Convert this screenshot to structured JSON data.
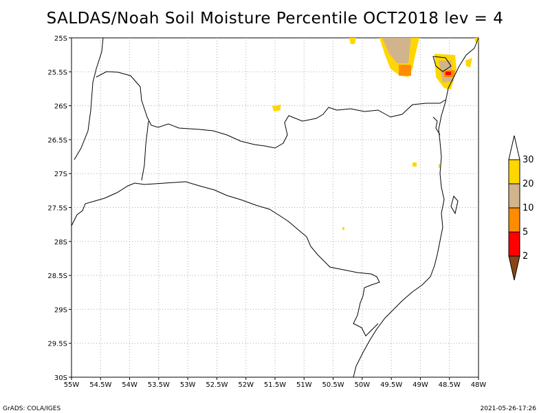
{
  "title": "SALDAS/Noah Soil Moisture Percentile OCT2018 lev = 4",
  "footer": {
    "left": "GrADS: COLA/IGES",
    "right": "2021-05-26-17:26"
  },
  "map": {
    "x_ticks": [
      "55W",
      "54.5W",
      "54W",
      "53.5W",
      "53W",
      "52.5W",
      "52W",
      "51.5W",
      "51W",
      "50.5W",
      "50W",
      "49.5W",
      "49W",
      "48.5W",
      "48W"
    ],
    "y_ticks": [
      "25S",
      "25.5S",
      "26S",
      "26.5S",
      "27S",
      "27.5S",
      "28S",
      "28.5S",
      "29S",
      "29.5S",
      "30S"
    ],
    "lon_range": [
      -55,
      -48
    ],
    "lat_range": [
      -30,
      -25
    ],
    "grid": true
  },
  "colorbar": {
    "labels": [
      "2",
      "5",
      "10",
      "20",
      "30"
    ],
    "colors": [
      "#8b4513",
      "#ff0000",
      "#ff8c00",
      "#d2b48c",
      "#ffd700"
    ]
  }
}
